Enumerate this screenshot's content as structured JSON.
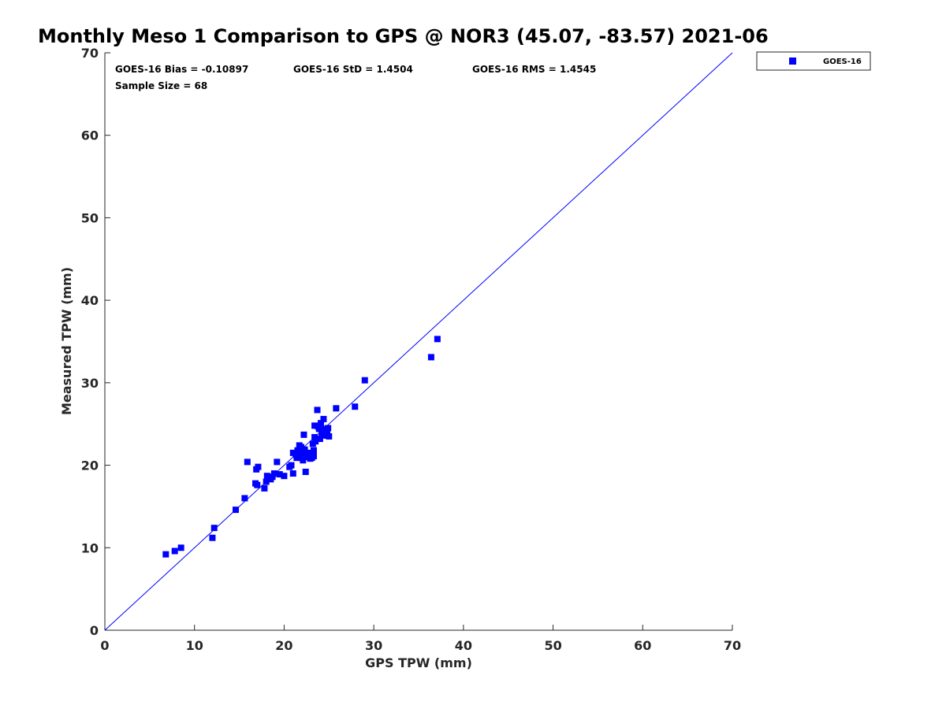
{
  "chart_data": {
    "type": "scatter",
    "title": "Monthly Meso 1 Comparison to GPS @ NOR3 (45.07, -83.57) 2021-06",
    "xlabel": "GPS TPW (mm)",
    "ylabel": "Measured TPW (mm)",
    "xlim": [
      0,
      70
    ],
    "ylim": [
      0,
      70
    ],
    "xticks": [
      0,
      10,
      20,
      30,
      40,
      50,
      60,
      70
    ],
    "yticks": [
      0,
      10,
      20,
      30,
      40,
      50,
      60,
      70
    ],
    "grid": false,
    "legend_position": "top-right, outside plot",
    "stats": {
      "bias": "GOES-16 Bias = -0.10897",
      "std": "GOES-16 StD = 1.4504",
      "rms": "GOES-16 RMS = 1.4545",
      "sample_size": "Sample Size = 68"
    },
    "reference_line": {
      "from": [
        0,
        0
      ],
      "to": [
        70,
        70
      ],
      "color": "#0000ff"
    },
    "series": [
      {
        "name": "GOES-16",
        "color": "#0000ff",
        "marker": "square",
        "points": [
          [
            6.8,
            9.2
          ],
          [
            7.8,
            9.6
          ],
          [
            8.5,
            10.0
          ],
          [
            12.0,
            11.2
          ],
          [
            12.2,
            12.4
          ],
          [
            14.6,
            14.6
          ],
          [
            15.6,
            16.0
          ],
          [
            15.9,
            20.4
          ],
          [
            16.8,
            17.8
          ],
          [
            16.9,
            19.5
          ],
          [
            17.0,
            17.6
          ],
          [
            17.1,
            19.8
          ],
          [
            17.8,
            17.2
          ],
          [
            18.0,
            18.0
          ],
          [
            18.1,
            18.7
          ],
          [
            18.5,
            18.3
          ],
          [
            18.7,
            18.6
          ],
          [
            18.9,
            19.0
          ],
          [
            19.2,
            20.4
          ],
          [
            19.5,
            18.9
          ],
          [
            20.0,
            18.7
          ],
          [
            20.6,
            19.8
          ],
          [
            20.8,
            20.0
          ],
          [
            21.0,
            19.0
          ],
          [
            21.0,
            21.5
          ],
          [
            21.3,
            21.3
          ],
          [
            21.5,
            21.8
          ],
          [
            21.6,
            21.0
          ],
          [
            21.7,
            22.4
          ],
          [
            21.8,
            20.9
          ],
          [
            21.9,
            22.2
          ],
          [
            22.0,
            21.5
          ],
          [
            22.1,
            20.6
          ],
          [
            22.2,
            23.7
          ],
          [
            22.3,
            21.9
          ],
          [
            22.4,
            19.2
          ],
          [
            22.5,
            21.2
          ],
          [
            22.6,
            21.5
          ],
          [
            22.7,
            21.0
          ],
          [
            22.9,
            20.8
          ],
          [
            23.0,
            21.4
          ],
          [
            23.1,
            20.9
          ],
          [
            23.2,
            22.6
          ],
          [
            23.3,
            21.8
          ],
          [
            23.3,
            21.1
          ],
          [
            23.4,
            23.4
          ],
          [
            23.4,
            24.8
          ],
          [
            23.5,
            22.9
          ],
          [
            23.7,
            26.7
          ],
          [
            23.8,
            24.7
          ],
          [
            24.0,
            23.2
          ],
          [
            24.1,
            25.1
          ],
          [
            24.2,
            23.8
          ],
          [
            24.3,
            24.1
          ],
          [
            24.4,
            25.6
          ],
          [
            24.5,
            23.6
          ],
          [
            24.6,
            24.4
          ],
          [
            24.7,
            24.0
          ],
          [
            24.8,
            23.8
          ],
          [
            24.9,
            24.5
          ],
          [
            25.0,
            23.5
          ],
          [
            25.8,
            26.9
          ],
          [
            27.9,
            27.1
          ],
          [
            29.0,
            30.3
          ],
          [
            36.4,
            33.1
          ],
          [
            37.1,
            35.3
          ],
          [
            21.4,
            20.9
          ],
          [
            23.9,
            24.4
          ]
        ]
      }
    ]
  }
}
